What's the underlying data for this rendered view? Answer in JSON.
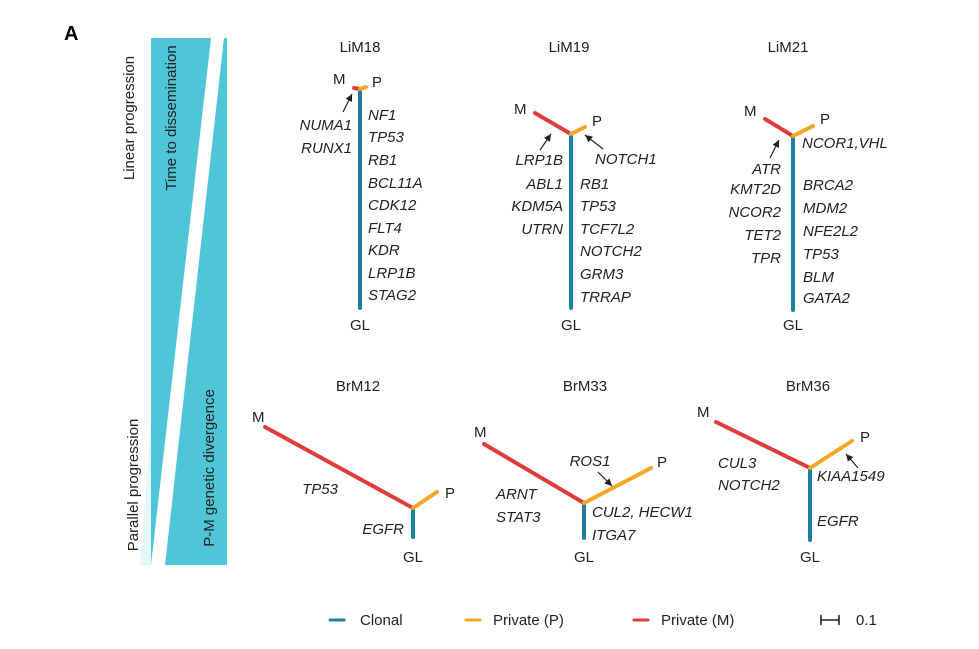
{
  "panel_label": "A",
  "side_labels": {
    "linear": "Linear progression",
    "time": "Time to dissemination",
    "parallel": "Parallel progression",
    "divergence": "P-M genetic divergence"
  },
  "colors": {
    "clonal": "#1b7fa8",
    "private_p": "#f5a623",
    "private_m": "#e03c3c",
    "wedge": "#4fc6d8"
  },
  "node_labels": {
    "m": "M",
    "p": "P",
    "gl": "GL"
  },
  "trees": {
    "lim18": {
      "title": "LiM18",
      "m_genes": [
        "NUMA1",
        "RUNX1"
      ],
      "clonal_genes": [
        "NF1",
        "TP53",
        "RB1",
        "BCL11A",
        "CDK12",
        "FLT4",
        "KDR",
        "LRP1B",
        "STAG2"
      ]
    },
    "lim19": {
      "title": "LiM19",
      "m_genes": [
        "LRP1B"
      ],
      "p_genes": [
        "NOTCH1"
      ],
      "left_clonal": [
        "ABL1",
        "KDM5A",
        "UTRN"
      ],
      "clonal_genes": [
        "RB1",
        "TP53",
        "TCF7L2",
        "NOTCH2",
        "GRM3",
        "TRRAP"
      ]
    },
    "lim21": {
      "title": "LiM21",
      "m_genes": [
        "ATR"
      ],
      "p_genes": [
        "NCOR1,VHL"
      ],
      "left_clonal": [
        "KMT2D",
        "NCOR2",
        "TET2",
        "TPR"
      ],
      "clonal_genes": [
        "BRCA2",
        "MDM2",
        "NFE2L2",
        "TP53",
        "BLM",
        "GATA2"
      ]
    },
    "brm12": {
      "title": "BrM12",
      "m_genes": [
        "TP53"
      ],
      "clonal_genes": [
        "EGFR"
      ]
    },
    "brm33": {
      "title": "BrM33",
      "m_genes": [
        "ARNT",
        "STAT3"
      ],
      "p_genes": [
        "ROS1"
      ],
      "clonal_genes": [
        "CUL2, HECW1",
        "ITGA7"
      ]
    },
    "brm36": {
      "title": "BrM36",
      "m_genes": [
        "CUL3",
        "NOTCH2"
      ],
      "p_genes": [
        "KIAA1549"
      ],
      "clonal_genes": [
        "EGFR"
      ]
    }
  },
  "legend": {
    "clonal": "Clonal",
    "private_p": "Private (P)",
    "private_m": "Private (M)",
    "scale": "0.1"
  }
}
